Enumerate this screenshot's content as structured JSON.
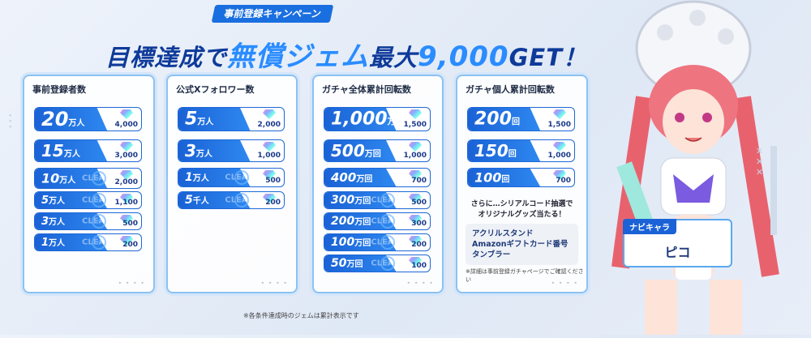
{
  "header": {
    "badge": "事前登録キャンペーン",
    "title_a": "目標達成で",
    "title_b": "無償ジェム",
    "title_c": "最大",
    "title_d": "9,000",
    "title_e": "GET！"
  },
  "clear_label": "CLEAR",
  "panels": [
    {
      "title": "事前登録者数",
      "rows": [
        {
          "num": "20",
          "unit": "万人",
          "gems": "4,000",
          "cleared": false
        },
        {
          "num": "15",
          "unit": "万人",
          "gems": "3,000",
          "cleared": false
        },
        {
          "num": "10",
          "unit": "万人",
          "gems": "2,000",
          "cleared": true
        },
        {
          "num": "5",
          "unit": "万人",
          "gems": "1,100",
          "cleared": true
        },
        {
          "num": "3",
          "unit": "万人",
          "gems": "500",
          "cleared": true
        },
        {
          "num": "1",
          "unit": "万人",
          "gems": "200",
          "cleared": true
        }
      ]
    },
    {
      "title": "公式Xフォロワー数",
      "rows": [
        {
          "num": "5",
          "unit": "万人",
          "gems": "2,000",
          "cleared": false
        },
        {
          "num": "3",
          "unit": "万人",
          "gems": "1,000",
          "cleared": false
        },
        {
          "num": "1",
          "unit": "万人",
          "gems": "500",
          "cleared": true
        },
        {
          "num": "5",
          "unit": "千人",
          "gems": "200",
          "cleared": true
        }
      ]
    },
    {
      "title": "ガチャ全体累計回転数",
      "rows": [
        {
          "num": "1,000",
          "unit": "万回",
          "gems": "1,500",
          "cleared": false
        },
        {
          "num": "500",
          "unit": "万回",
          "gems": "1,000",
          "cleared": false
        },
        {
          "num": "400",
          "unit": "万回",
          "gems": "700",
          "cleared": false
        },
        {
          "num": "300",
          "unit": "万回",
          "gems": "500",
          "cleared": true
        },
        {
          "num": "200",
          "unit": "万回",
          "gems": "300",
          "cleared": true
        },
        {
          "num": "100",
          "unit": "万回",
          "gems": "200",
          "cleared": true
        },
        {
          "num": "50",
          "unit": "万回",
          "gems": "100",
          "cleared": true
        }
      ]
    },
    {
      "title": "ガチャ個人累計回転数",
      "rows": [
        {
          "num": "200",
          "unit": "回",
          "gems": "1,500",
          "cleared": false
        },
        {
          "num": "150",
          "unit": "回",
          "gems": "1,000",
          "cleared": false
        },
        {
          "num": "100",
          "unit": "回",
          "gems": "700",
          "cleared": false
        }
      ]
    }
  ],
  "extra": {
    "line1": "さらに…シリアルコード抽選で",
    "line2": "オリジナルグッズ当たる！",
    "prizes": [
      "アクリルスタンド",
      "Amazonギフトカード番号",
      "タンブラー"
    ],
    "note": "※詳細は事前登録ガチャページでご確認ください"
  },
  "footer_note": "※各条件達成時のジェムは累計表示です",
  "navi": {
    "tag": "ナビキャラ",
    "name": "ピコ"
  },
  "colors": {
    "accent": "#1a62d6",
    "title": "#0e3a9a",
    "panel_border": "#8cc2f2"
  }
}
